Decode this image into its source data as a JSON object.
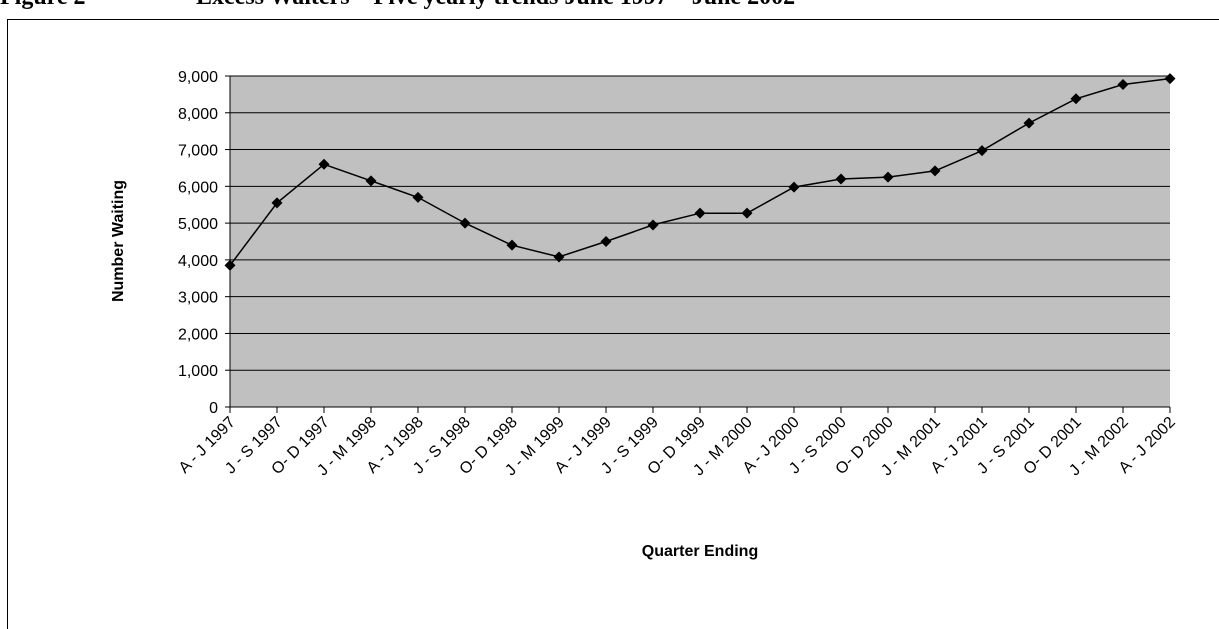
{
  "figure": {
    "label": "Figure 2",
    "title": "Excess Waiters – Five yearly trends June 1997 – June 2002"
  },
  "chart_data": {
    "type": "line",
    "title": "",
    "xlabel": "Quarter Ending",
    "ylabel": "Number Waiting",
    "categories": [
      "A - J 1997",
      "J - S 1997",
      "O- D 1997",
      "J - M 1998",
      "A - J 1998",
      "J - S 1998",
      "O- D 1998",
      "J - M 1999",
      "A - J 1999",
      "J - S 1999",
      "O- D 1999",
      "J - M 2000",
      "A - J 2000",
      "J - S 2000",
      "O- D 2000",
      "J - M 2001",
      "A - J 2001",
      "J - S 2001",
      "O- D 2001",
      "J - M 2002",
      "A - J 2002"
    ],
    "series": [
      {
        "values": [
          3850,
          5550,
          6600,
          6150,
          5700,
          5000,
          4400,
          4080,
          4500,
          4950,
          5270,
          5270,
          5980,
          6200,
          6250,
          6420,
          6970,
          7720,
          8380,
          8770,
          8930
        ]
      }
    ],
    "ylim": [
      0,
      9000
    ],
    "yticks": [
      0,
      1000,
      2000,
      3000,
      4000,
      5000,
      6000,
      7000,
      8000,
      9000
    ],
    "ytick_labels": [
      "0",
      "1,000",
      "2,000",
      "3,000",
      "4,000",
      "5,000",
      "6,000",
      "7,000",
      "8,000",
      "9,000"
    ],
    "grid": true,
    "legend": "none",
    "colors": {
      "plot_area": "#c0c0c0",
      "line": "#000000",
      "marker": "#000000"
    },
    "marker": "diamond"
  }
}
